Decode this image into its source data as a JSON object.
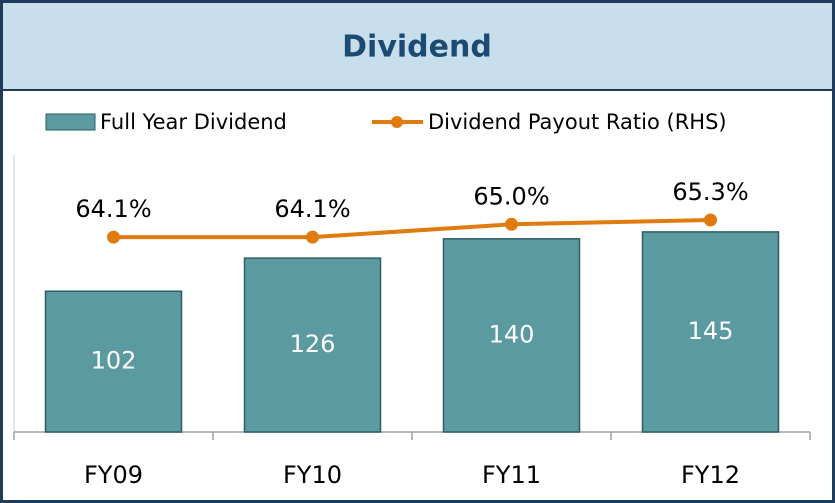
{
  "chart_data": {
    "type": "bar_line",
    "title": "Dividend",
    "categories": [
      "FY09",
      "FY10",
      "FY11",
      "FY12"
    ],
    "series": [
      {
        "name": "Full Year Dividend",
        "type": "bar",
        "color": "#5b9aa0",
        "values": [
          102,
          126,
          140,
          145
        ]
      },
      {
        "name": "Dividend Payout Ratio (RHS)",
        "type": "line",
        "axis": "y2",
        "color": "#e07b10",
        "values": [
          64.1,
          64.1,
          65.0,
          65.3
        ],
        "value_labels": [
          "64.1%",
          "64.1%",
          "65.0%",
          "65.3%"
        ]
      }
    ],
    "ylim": [
      0,
      200
    ],
    "y2lim": [
      50.4,
      69.8
    ],
    "grid": false
  }
}
